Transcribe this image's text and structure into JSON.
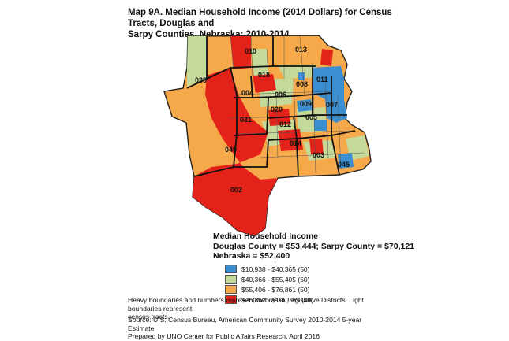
{
  "title": {
    "line1": "Map 9A. Median Household Income (2014 Dollars) for Census Tracts, Douglas and",
    "line2": "Sarpy Counties, Nebraska: 2010-2014"
  },
  "legend": {
    "title": "Median Household Income",
    "line2": "Douglas County = $53,444; Sarpy County = $70,121",
    "line3": "Nebraska = $52,400",
    "items": [
      {
        "label": "$10,938 - $40,365 (50)",
        "color": "#3b8fd0"
      },
      {
        "label": "$40,366 - $55,405 (50)",
        "color": "#c5d99a"
      },
      {
        "label": "$55,406 - $76,861 (50)",
        "color": "#f5a94a"
      },
      {
        "label": "$76,862 - $190,789 (49)",
        "color": "#e32219"
      }
    ]
  },
  "notes": {
    "line1": "Heavy boundaries and numbers represent Nebraska Legislative Districts. Light boundaries represent",
    "line2": "census tracts."
  },
  "source": {
    "line1": "Source: U.S. Census Bureau, American Community Survey 2010-2014 5-year Estimate",
    "line2": "Prepared by UNO Center for Public Affairs Research, April 2016"
  },
  "districts": [
    "010",
    "013",
    "039",
    "018",
    "008",
    "011",
    "004",
    "006",
    "007",
    "020",
    "009",
    "031",
    "012",
    "005",
    "049",
    "014",
    "003",
    "045",
    "002"
  ]
}
